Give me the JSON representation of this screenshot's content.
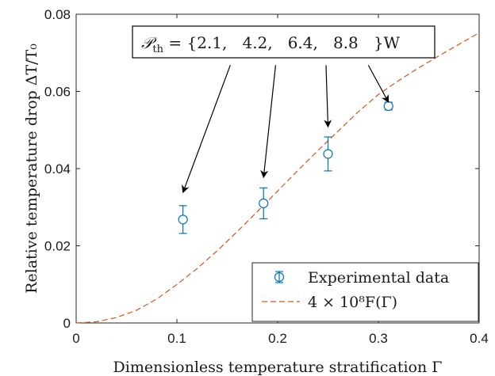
{
  "chart_data": {
    "type": "scatter",
    "xlabel": "Dimensionless temperature stratification Γ",
    "ylabel": "Relative temperature drop ΔT/T₀",
    "xlim": [
      0,
      0.4
    ],
    "ylim": [
      0,
      0.08
    ],
    "xticks": [
      0,
      0.1,
      0.2,
      0.3,
      0.4
    ],
    "xtick_labels": [
      "0",
      "0.1",
      "0.2",
      "0.3",
      "0.4"
    ],
    "yticks": [
      0,
      0.02,
      0.04,
      0.06,
      0.08
    ],
    "ytick_labels": [
      "0",
      "0.02",
      "0.04",
      "0.06",
      "0.08"
    ],
    "grid": false,
    "legend_position": "bottom-right",
    "series": [
      {
        "name": "Experimental data",
        "kind": "errorbar",
        "marker": "open-circle",
        "color": "#0072BD",
        "x": [
          0.106,
          0.186,
          0.25,
          0.31
        ],
        "y": [
          0.0268,
          0.031,
          0.0438,
          0.0562
        ],
        "err": [
          0.0036,
          0.004,
          0.0044,
          0.001
        ]
      },
      {
        "name": "4 × 10⁸F(Γ)",
        "kind": "line",
        "style": "dashed",
        "color": "#D95319",
        "x": [
          0,
          0.02,
          0.04,
          0.06,
          0.08,
          0.1,
          0.12,
          0.14,
          0.16,
          0.18,
          0.2,
          0.22,
          0.24,
          0.26,
          0.28,
          0.3,
          0.32,
          0.34,
          0.36,
          0.38,
          0.4
        ],
        "y": [
          0,
          0.0003,
          0.0014,
          0.0033,
          0.0062,
          0.01,
          0.0141,
          0.0187,
          0.0237,
          0.0289,
          0.0342,
          0.0395,
          0.0447,
          0.0497,
          0.0547,
          0.0592,
          0.0628,
          0.0661,
          0.0692,
          0.0722,
          0.0752
        ]
      }
    ],
    "annotation": {
      "prefix": "𝒫",
      "subscript": "th",
      "body": " = {2.1,   4.2,   6.4,   8.8   }W",
      "arrow_targets": [
        {
          "x": 0.106,
          "y": 0.0338
        },
        {
          "x": 0.186,
          "y": 0.0377
        },
        {
          "x": 0.25,
          "y": 0.0508
        },
        {
          "x": 0.31,
          "y": 0.0572
        }
      ],
      "arrow_origins": [
        {
          "x": 0.153,
          "y": 0.0668
        },
        {
          "x": 0.198,
          "y": 0.0668
        },
        {
          "x": 0.248,
          "y": 0.0668
        },
        {
          "x": 0.29,
          "y": 0.0668
        }
      ]
    }
  }
}
